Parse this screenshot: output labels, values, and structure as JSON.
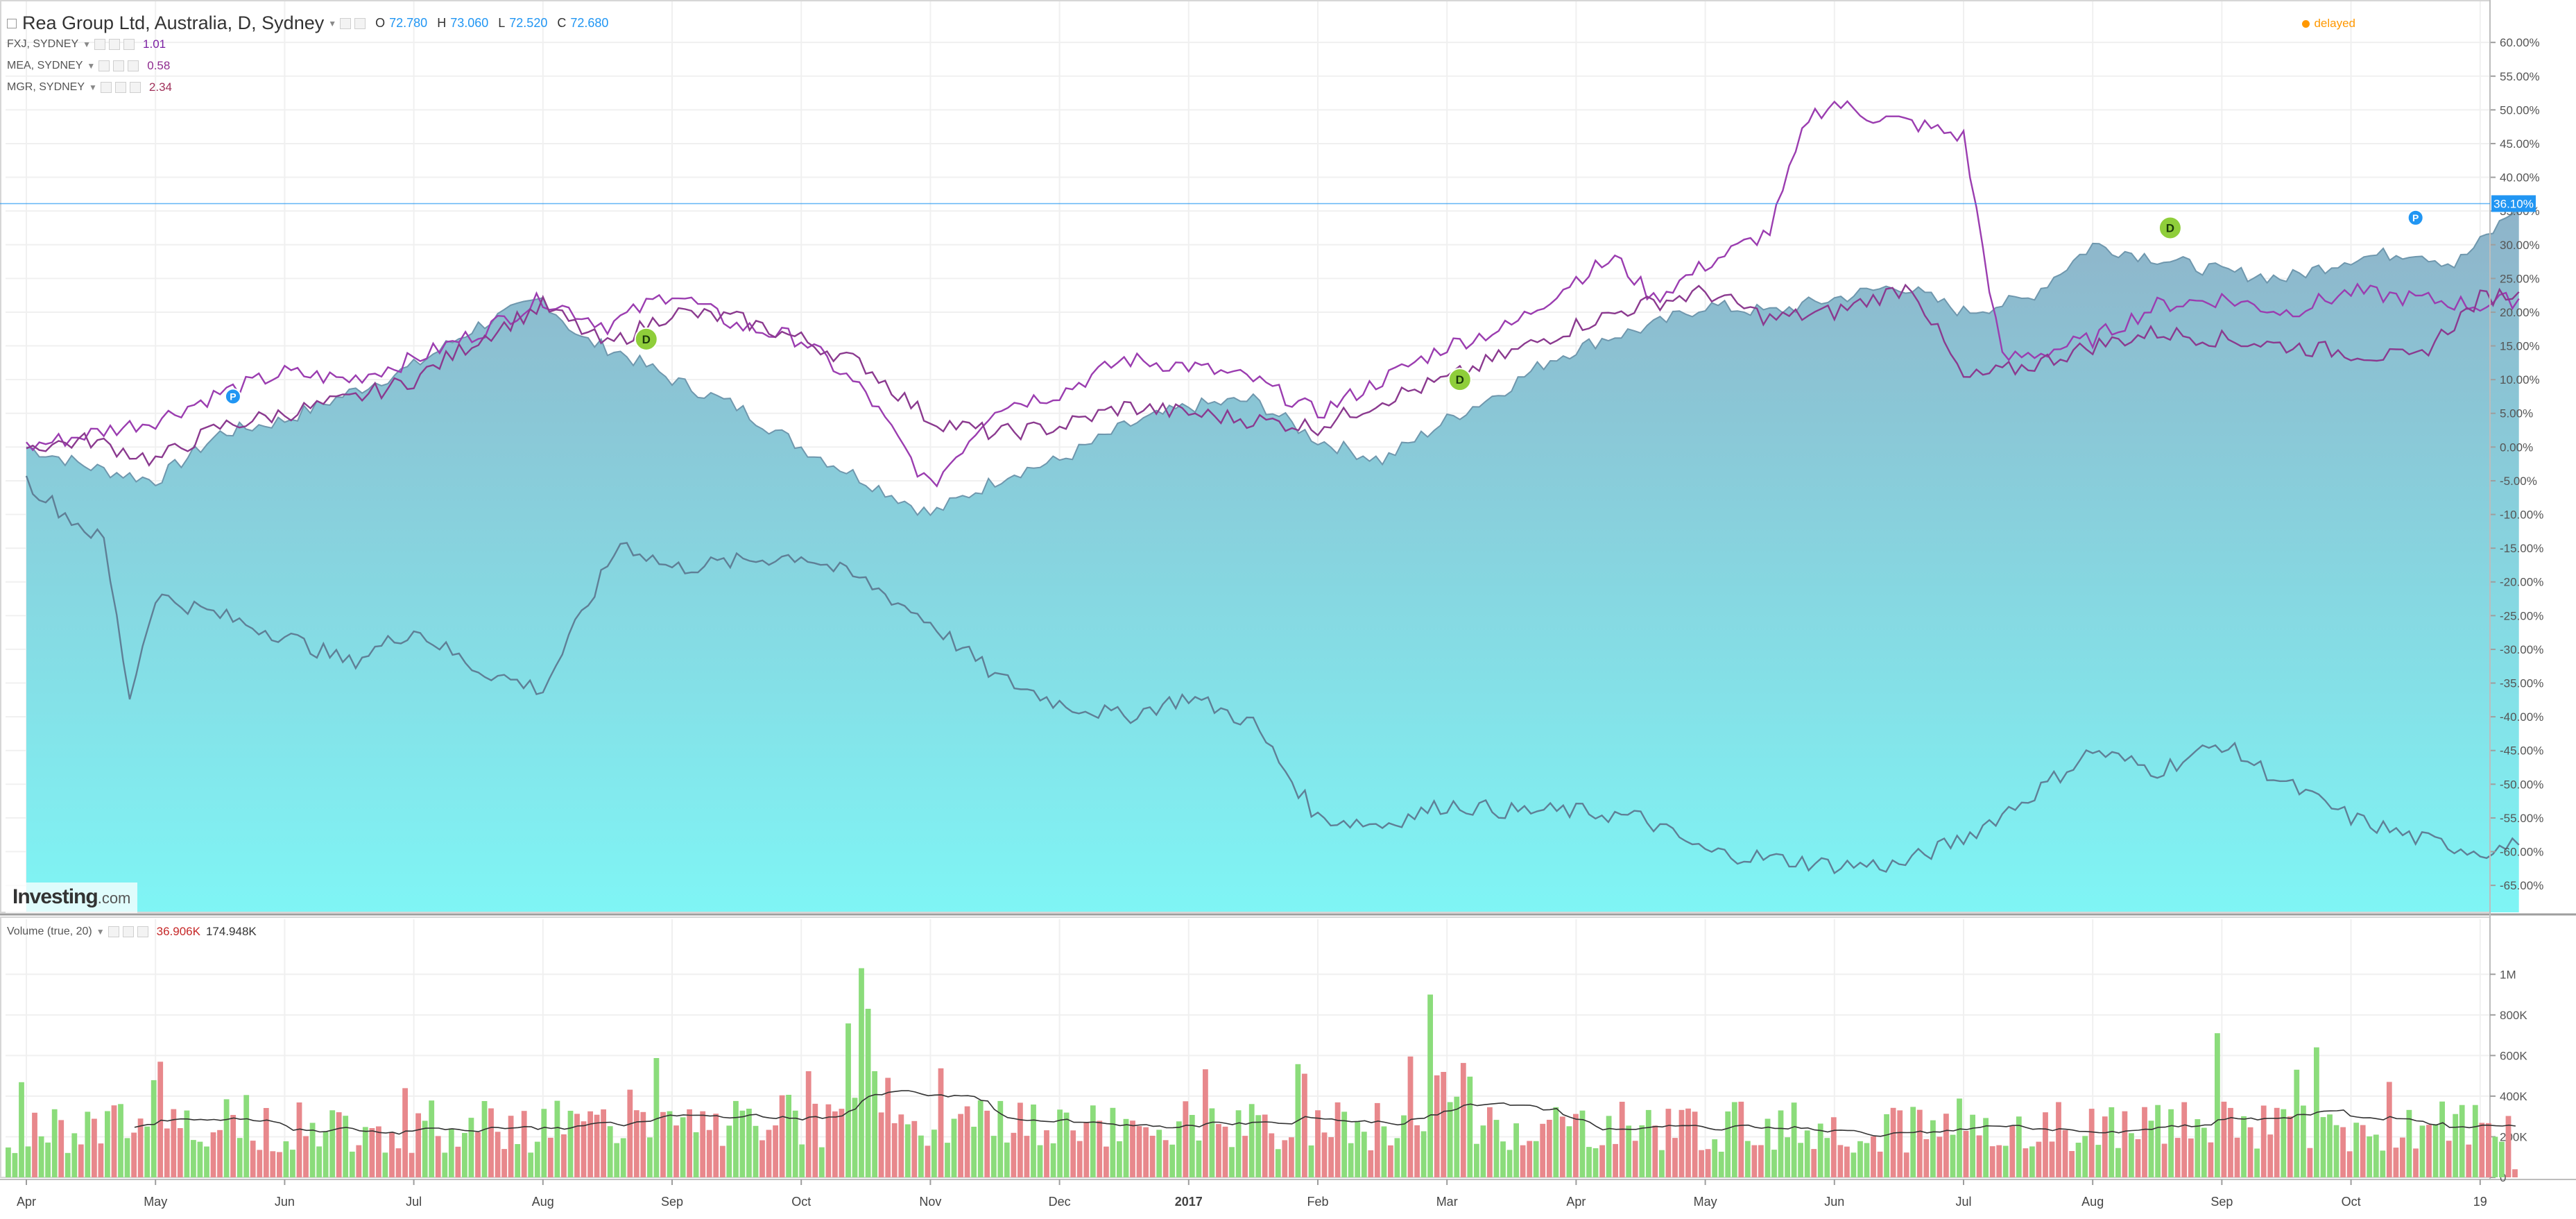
{
  "header": {
    "main_symbol": "Rea Group Ltd, Australia, D, Sydney",
    "ohlc": [
      {
        "key": "O",
        "value": "72.780"
      },
      {
        "key": "H",
        "value": "73.060"
      },
      {
        "key": "L",
        "value": "72.520"
      },
      {
        "key": "C",
        "value": "72.680"
      }
    ],
    "compare_symbols": [
      {
        "name": "FXJ, SYDNEY",
        "value": "1.01",
        "color": "#7b1fa2"
      },
      {
        "name": "MEA, SYDNEY",
        "value": "0.58",
        "color": "#8e2a8e"
      },
      {
        "name": "MGR, SYDNEY",
        "value": "2.34",
        "color": "#a0305a"
      }
    ],
    "delayed_label": "delayed",
    "delayed_color": "#ff9800"
  },
  "branding": {
    "logo_main": "Investing",
    "logo_suffix": ".com"
  },
  "volume_pane": {
    "label": "Volume (true, 20)",
    "value_sell": "36.906K",
    "value_ma": "174.948K",
    "sell_color": "#c62828",
    "buy_color": "#8bdc7b",
    "down_color": "#e8888c"
  },
  "colors": {
    "area_top": "#8fb3c9",
    "area_bottom": "#7ff5f5",
    "area_line": "#6f97ad",
    "mea_line": "#8b3a8f",
    "fxj_line": "#9b3db0",
    "mgr_line": "#5f7f96",
    "last_price": "#2196f3",
    "dividend": "#8fce3a",
    "split_marker": "#2196f3"
  },
  "chart_data": {
    "type": "area",
    "x_ticks": [
      "Apr",
      "May",
      "Jun",
      "Jul",
      "Aug",
      "Sep",
      "Oct",
      "Nov",
      "Dec",
      "2017",
      "Feb",
      "Mar",
      "Apr",
      "May",
      "Jun",
      "Jul",
      "Aug",
      "Sep",
      "Oct",
      "19"
    ],
    "y_axis": {
      "unit": "%",
      "ticks": [
        "60.00%",
        "55.00%",
        "50.00%",
        "45.00%",
        "40.00%",
        "35.00%",
        "30.00%",
        "25.00%",
        "20.00%",
        "15.00%",
        "10.00%",
        "5.00%",
        "0.00%",
        "-5.00%",
        "-10.00%",
        "-15.00%",
        "-20.00%",
        "-25.00%",
        "-30.00%",
        "-35.00%",
        "-40.00%",
        "-45.00%",
        "-50.00%",
        "-55.00%",
        "-60.00%",
        "-65.00%"
      ],
      "range": [
        -69,
        63
      ]
    },
    "last_value_label": "36.10%",
    "last_value": 36.1,
    "grid": true,
    "series": [
      {
        "name": "Rea Group Ltd, Australia, D, Sydney",
        "style": "area",
        "x": [
          0,
          0.5,
          1,
          1.5,
          2,
          2.5,
          3,
          3.5,
          4,
          4.3,
          4.6,
          5,
          5.5,
          6,
          6.5,
          7,
          7.3,
          7.6,
          8,
          8.5,
          9,
          9.5,
          10,
          10.5,
          11,
          11.4,
          11.8,
          12.2,
          12.6,
          13,
          13.5,
          14,
          14.5,
          15,
          15.5,
          16,
          16.5,
          17,
          17.5,
          18,
          18.5,
          18.8,
          19.1,
          19.3
        ],
        "values": [
          0,
          -3,
          -5,
          2,
          4,
          8,
          12,
          18,
          22,
          16,
          14,
          10,
          6,
          0,
          -5,
          -10,
          -7,
          -4,
          -2,
          3,
          6,
          7,
          1,
          -2,
          4,
          8,
          13,
          16,
          18,
          21,
          20,
          22,
          24,
          20,
          22,
          30,
          28,
          26,
          25,
          28,
          29,
          27,
          32,
          36.1
        ]
      },
      {
        "name": "FXJ, SYDNEY",
        "style": "line",
        "x": [
          0,
          0.5,
          1,
          1.5,
          2,
          2.5,
          3,
          3.5,
          4,
          4.5,
          5,
          5.5,
          6,
          6.5,
          7,
          7.5,
          8,
          8.5,
          9,
          9.5,
          10,
          10.5,
          11,
          11.5,
          12,
          12.3,
          12.6,
          13,
          13.5,
          13.8,
          14,
          14.3,
          14.6,
          15,
          15.3,
          15.6,
          16,
          16.5,
          17,
          17.5,
          18,
          18.5,
          19,
          19.3
        ],
        "values": [
          0,
          2,
          4,
          8,
          11,
          10,
          13,
          17,
          22,
          18,
          23,
          18,
          16,
          8,
          -6,
          6,
          8,
          13,
          12,
          10,
          5,
          10,
          15,
          18,
          25,
          28,
          22,
          27,
          32,
          49,
          51,
          49,
          48,
          46,
          13,
          14,
          16,
          21,
          22,
          20,
          23,
          22,
          21,
          22
        ]
      },
      {
        "name": "MEA, SYDNEY",
        "style": "line",
        "x": [
          0,
          0.5,
          1,
          1.5,
          2,
          2.5,
          3,
          3.5,
          4,
          4.5,
          5,
          5.5,
          6,
          6.5,
          7,
          7.5,
          8,
          8.5,
          9,
          9.5,
          10,
          10.5,
          11,
          11.5,
          12,
          12.5,
          13,
          13.5,
          14,
          14.3,
          14.6,
          15,
          15.5,
          16,
          16.5,
          17,
          17.5,
          18,
          18.5,
          19,
          19.3
        ],
        "values": [
          0,
          1,
          -2,
          3,
          5,
          7,
          10,
          16,
          21,
          15,
          20,
          19,
          16,
          12,
          4,
          2,
          3,
          6,
          5,
          4,
          3,
          7,
          10,
          14,
          18,
          21,
          23,
          19,
          20,
          22,
          24,
          10,
          12,
          15,
          17,
          16,
          15,
          14,
          13,
          22,
          23
        ]
      },
      {
        "name": "MGR, SYDNEY",
        "style": "line",
        "x": [
          0,
          0.3,
          0.6,
          0.8,
          1,
          1.5,
          2,
          2.5,
          3,
          3.5,
          4,
          4.3,
          4.6,
          5,
          5.5,
          6,
          6.5,
          7,
          7.5,
          8,
          8.5,
          9,
          9.5,
          10,
          10.5,
          11,
          11.5,
          12,
          12.5,
          13,
          13.5,
          14,
          14.5,
          15,
          15.5,
          16,
          16.5,
          17,
          17.5,
          18,
          18.5,
          19,
          19.3
        ],
        "values": [
          -5,
          -10,
          -14,
          -37,
          -22,
          -25,
          -28,
          -32,
          -27,
          -33,
          -36,
          -25,
          -14,
          -18,
          -17,
          -16,
          -20,
          -26,
          -34,
          -38,
          -40,
          -37,
          -41,
          -55,
          -56,
          -53,
          -54,
          -54,
          -55,
          -60,
          -61,
          -62,
          -62,
          -58,
          -52,
          -45,
          -48,
          -44,
          -50,
          -55,
          -58,
          -60,
          -59
        ]
      }
    ],
    "volume": {
      "y_ticks": [
        "1M",
        "800K",
        "600K",
        "400K",
        "200K",
        "0"
      ],
      "y_range": [
        0,
        1100000
      ],
      "ma_name": "Volume (true, 20)"
    },
    "markers": [
      {
        "type": "P",
        "x": 1.6,
        "y": 7.5
      },
      {
        "type": "D",
        "x": 4.8,
        "y": 16
      },
      {
        "type": "D",
        "x": 11.1,
        "y": 10
      },
      {
        "type": "D",
        "x": 16.6,
        "y": 32.5
      },
      {
        "type": "P",
        "x": 18.5,
        "y": 34
      }
    ]
  }
}
